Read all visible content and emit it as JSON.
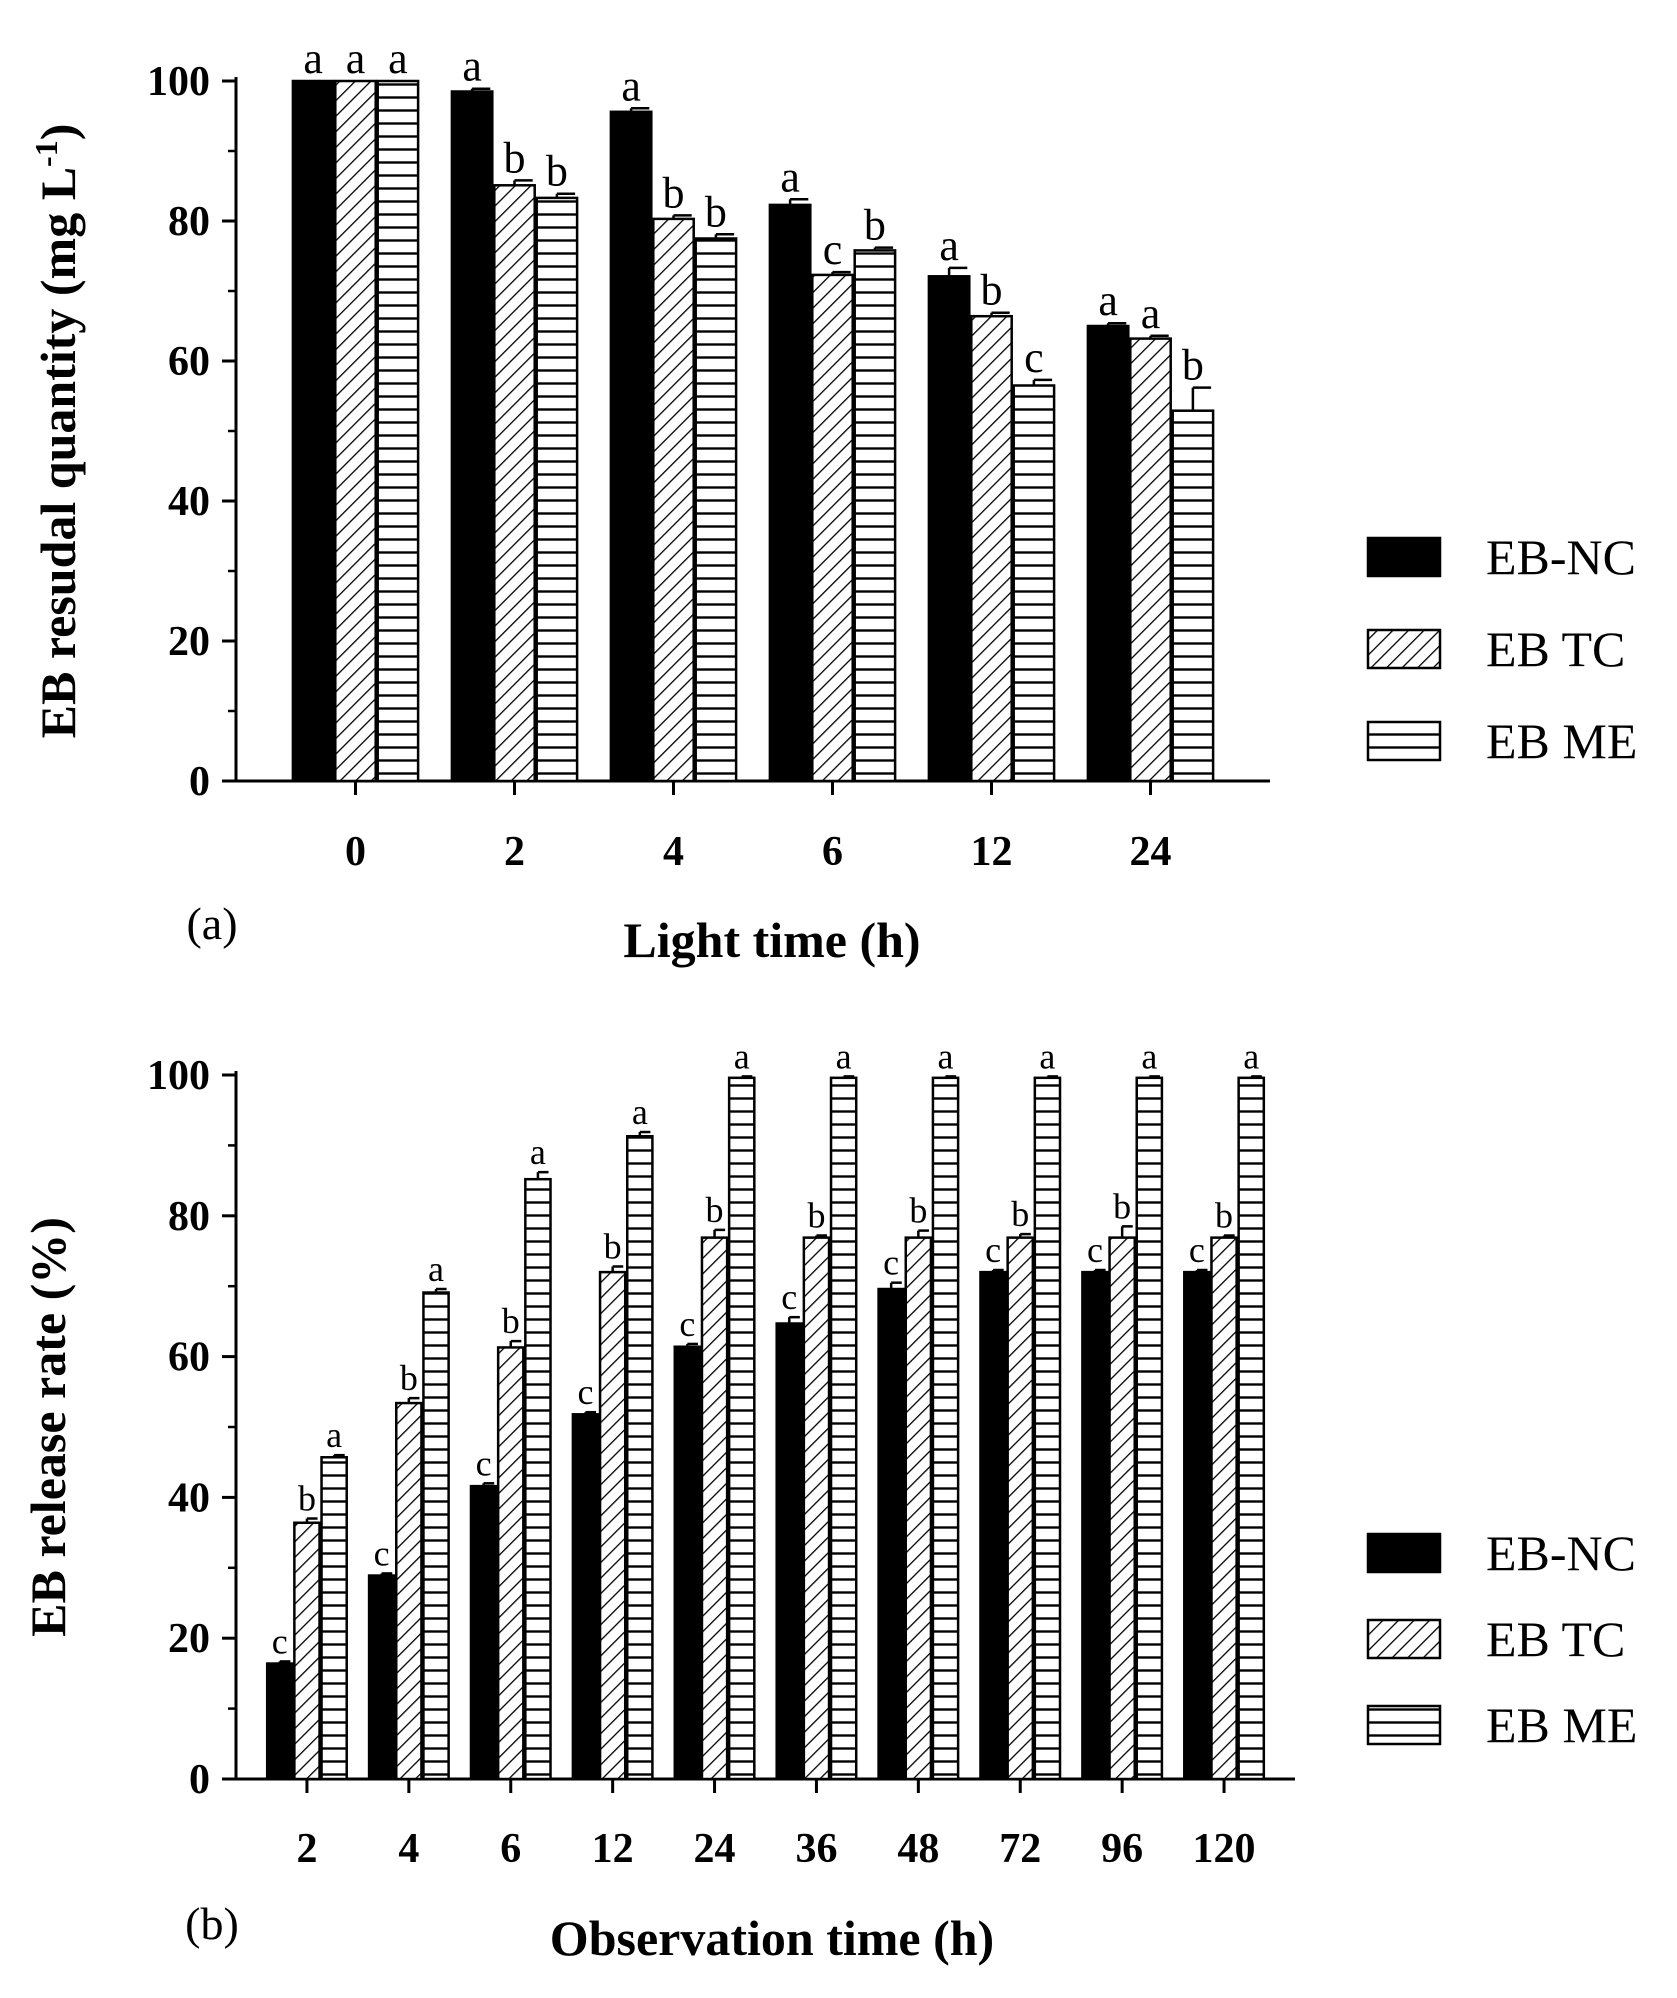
{
  "chart_data": [
    {
      "type": "bar",
      "panel_label": "(a)",
      "xlabel": "Light time (h)",
      "ylabel": "EB resudal quantity (mg L",
      "ylabel_sup": "-1",
      "ylabel_close": ")",
      "ylim": [
        0,
        100
      ],
      "yticks": [
        "0",
        "20",
        "40",
        "60",
        "80",
        "100"
      ],
      "categories": [
        "0",
        "2",
        "4",
        "6",
        "12",
        "24"
      ],
      "series": [
        {
          "name": "EB-NC",
          "values": [
            100,
            98.5,
            95.6,
            82.3,
            72.1,
            65.0
          ],
          "errors": [
            0,
            0.4,
            0.5,
            0.8,
            1.2,
            0.4
          ],
          "letters": [
            "a",
            "a",
            "a",
            "a",
            "a",
            "a"
          ]
        },
        {
          "name": "EB TC",
          "values": [
            100,
            85.1,
            80.3,
            72.3,
            66.4,
            63.2
          ],
          "errors": [
            0,
            0.7,
            0.5,
            0.4,
            0.5,
            0.4
          ],
          "letters": [
            "a",
            "b",
            "b",
            "c",
            "b",
            "a"
          ]
        },
        {
          "name": "EB ME",
          "values": [
            100,
            83.3,
            77.5,
            75.8,
            56.5,
            52.9
          ],
          "errors": [
            0,
            0.6,
            0.6,
            0.4,
            0.8,
            3.3
          ],
          "letters": [
            "a",
            "b",
            "b",
            "b",
            "c",
            "b"
          ]
        }
      ],
      "legend": [
        "EB-NC",
        "EB TC",
        "EB ME"
      ],
      "legend_position": "right"
    },
    {
      "type": "bar",
      "panel_label": "(b)",
      "xlabel": "Observation time (h)",
      "ylabel": "EB release rate (%)",
      "ylim": [
        0,
        100
      ],
      "yticks": [
        "0",
        "20",
        "40",
        "60",
        "80",
        "100"
      ],
      "categories": [
        "2",
        "4",
        "6",
        "12",
        "24",
        "36",
        "48",
        "72",
        "96",
        "120"
      ],
      "series": [
        {
          "name": "EB-NC",
          "values": [
            16.4,
            28.9,
            41.6,
            51.8,
            61.4,
            64.7,
            69.6,
            72.0,
            72.0,
            72.0
          ],
          "errors": [
            0.3,
            0.3,
            0.4,
            0.3,
            0.4,
            0.9,
            0.9,
            0.3,
            0.3,
            0.3
          ],
          "letters": [
            "c",
            "c",
            "c",
            "c",
            "c",
            "c",
            "c",
            "c",
            "c",
            "c"
          ]
        },
        {
          "name": "EB TC",
          "values": [
            36.4,
            53.4,
            61.3,
            72.0,
            76.9,
            76.9,
            76.9,
            76.9,
            76.9,
            76.9
          ],
          "errors": [
            0.6,
            0.7,
            0.9,
            0.8,
            1.1,
            0.3,
            1.0,
            0.5,
            1.6,
            0.3
          ],
          "letters": [
            "b",
            "b",
            "b",
            "b",
            "b",
            "b",
            "b",
            "b",
            "b",
            "b"
          ]
        },
        {
          "name": "EB ME",
          "values": [
            45.7,
            69.1,
            85.2,
            91.3,
            99.6,
            99.6,
            99.6,
            99.6,
            99.6,
            99.6
          ],
          "errors": [
            0.3,
            0.5,
            1.0,
            0.6,
            0.2,
            0.2,
            0.2,
            0.2,
            0.2,
            0.2
          ],
          "letters": [
            "a",
            "a",
            "a",
            "a",
            "a",
            "a",
            "a",
            "a",
            "a",
            "a"
          ]
        }
      ],
      "legend": [
        "EB-NC",
        "EB TC",
        "EB ME"
      ],
      "legend_position": "right"
    }
  ]
}
